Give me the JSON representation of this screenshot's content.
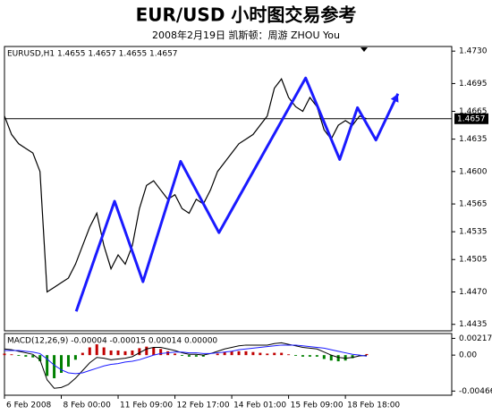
{
  "chart_data": [
    {
      "type": "line",
      "title": "EUR/USD 小时图交易参考",
      "subtitle": "2008年2月19日  凯斯顿：周游 ZHOU You",
      "header": "EURUSD,H1 1.4655 1.4657 1.4655 1.4657",
      "categories": [
        "6 Feb 2008",
        null,
        null,
        null,
        null,
        null,
        null,
        null,
        "8 Feb 00:00",
        null,
        null,
        null,
        null,
        null,
        null,
        null,
        "11 Feb 09:00",
        null,
        null,
        null,
        null,
        null,
        null,
        null,
        "12 Feb 17:00",
        null,
        null,
        null,
        null,
        null,
        null,
        null,
        "14 Feb 01:00",
        null,
        null,
        null,
        null,
        null,
        null,
        null,
        "15 Feb 09:00",
        null,
        null,
        null,
        null,
        null,
        null,
        null,
        "18 Feb 18:00",
        null,
        null,
        null
      ],
      "series": [
        {
          "name": "EURUSD,H1",
          "color": "#000000",
          "values": [
            1.466,
            1.464,
            1.463,
            1.4625,
            1.462,
            1.46,
            1.447,
            1.4475,
            1.448,
            1.4485,
            1.45,
            1.452,
            1.454,
            1.4555,
            1.452,
            1.4495,
            1.451,
            1.45,
            1.452,
            1.456,
            1.4585,
            1.459,
            1.458,
            1.457,
            1.4575,
            1.456,
            1.4555,
            1.457,
            1.4565,
            1.458,
            1.46,
            1.461,
            1.462,
            1.463,
            1.4635,
            1.464,
            1.465,
            1.466,
            1.469,
            1.47,
            1.468,
            1.467,
            1.4665,
            1.468,
            1.467,
            1.4645,
            1.4635,
            1.465,
            1.4655,
            1.465,
            1.466,
            1.4657
          ]
        }
      ],
      "zigzag": {
        "color": "#1a1aff",
        "x": [
          10.1,
          15.5,
          19.5,
          24.8,
          30.2,
          42.4,
          47.2,
          49.7,
          52.3,
          55.4
        ],
        "values": [
          1.4449,
          1.4568,
          1.4481,
          1.4611,
          1.4534,
          1.4701,
          1.4613,
          1.4669,
          1.4634,
          1.4684
        ]
      },
      "current_price": 1.4657,
      "ylim": [
        1.4428,
        1.4735
      ],
      "yticks": [
        {
          "value": 1.473,
          "label": "1.4730"
        },
        1.4695,
        1.4665,
        1.4635,
        {
          "value": 1.46,
          "label": "1.4600"
        },
        1.4565,
        1.4535,
        1.4505,
        {
          "value": 1.447,
          "label": "1.4470"
        },
        1.4435
      ]
    },
    {
      "type": "macd",
      "header": "MACD(12,26,9) -0.00004 -0.00015 0.00014 0.00000",
      "macd": {
        "color": "#000000",
        "values": [
          0.0008,
          0.0007,
          0.0005,
          0.0003,
          0.0001,
          -0.0006,
          -0.0032,
          -0.0043,
          -0.0042,
          -0.0038,
          -0.003,
          -0.002,
          -0.001,
          -0.0003,
          -0.0004,
          -0.0006,
          -0.0005,
          -0.0004,
          -0.0002,
          0.0003,
          0.0008,
          0.001,
          0.001,
          0.0008,
          0.0006,
          0.0003,
          0.0001,
          0.0001,
          0.0,
          0.0002,
          0.0005,
          0.0008,
          0.001,
          0.0012,
          0.0013,
          0.0013,
          0.0013,
          0.0013,
          0.0015,
          0.0016,
          0.0014,
          0.0012,
          0.001,
          0.0009,
          0.0008,
          0.0004,
          0.0,
          -0.0003,
          -0.0004,
          -0.0003,
          -0.0001,
          -4e-05
        ]
      },
      "signal": {
        "color": "#1a1aff",
        "values": [
          0.0006,
          0.0006,
          0.0006,
          0.0005,
          0.0004,
          0.0002,
          -0.0005,
          -0.0013,
          -0.0019,
          -0.0023,
          -0.0024,
          -0.0023,
          -0.002,
          -0.0017,
          -0.0014,
          -0.0012,
          -0.0011,
          -0.0009,
          -0.0008,
          -0.0006,
          -0.0003,
          0.0,
          0.0002,
          0.0003,
          0.0004,
          0.0004,
          0.0003,
          0.0003,
          0.0002,
          0.0002,
          0.0003,
          0.0004,
          0.0005,
          0.0007,
          0.0008,
          0.0009,
          0.001,
          0.0011,
          0.0012,
          0.0013,
          0.0013,
          0.0013,
          0.0012,
          0.0011,
          0.001,
          0.0009,
          0.0007,
          0.0005,
          0.0003,
          0.0001,
          0.0,
          -0.00015
        ]
      },
      "histogram": {
        "up_color": "#c00000",
        "down_color": "#008000",
        "values": [
          0.0002,
          0.0001,
          -0.0001,
          -0.0002,
          -0.0003,
          -0.0008,
          -0.0027,
          -0.003,
          -0.0023,
          -0.0015,
          -0.0006,
          0.0003,
          0.001,
          0.0014,
          0.001,
          0.0006,
          0.0006,
          0.0005,
          0.0006,
          0.0009,
          0.0011,
          0.001,
          0.0008,
          0.0005,
          0.0002,
          -0.0001,
          -0.0002,
          -0.0002,
          -0.0002,
          0.0,
          0.0002,
          0.0004,
          0.0005,
          0.0005,
          0.0005,
          0.0004,
          0.0003,
          0.0002,
          0.0003,
          0.0003,
          0.0001,
          -0.0001,
          -0.0002,
          -0.0002,
          -0.0002,
          -0.0005,
          -0.0007,
          -0.0008,
          -0.0007,
          -0.0004,
          -0.0001,
          0.00014
        ]
      },
      "ylim": [
        -0.0052,
        0.0028
      ],
      "yticks": [
        0.00217,
        {
          "value": 0,
          "label": "0.00"
        },
        -0.00466
      ]
    }
  ]
}
